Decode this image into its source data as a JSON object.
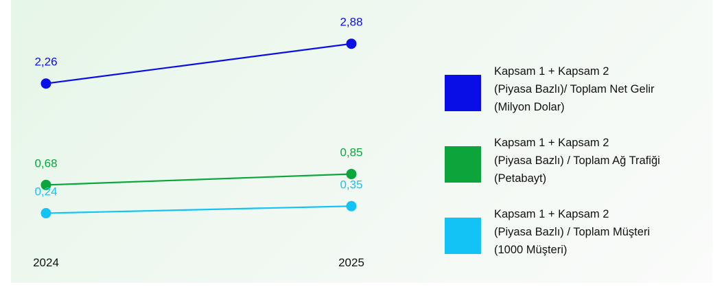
{
  "chart_data": {
    "type": "line",
    "categories": [
      "2024",
      "2025"
    ],
    "series": [
      {
        "name": "Kapsam 1 + Kapsam 2\n(Piyasa Bazlı)/ Toplam Net Gelir\n(Milyon Dolar)",
        "values": [
          2.26,
          2.88
        ],
        "value_labels": [
          "2,26",
          "2,88"
        ],
        "color": "#0a0ee6"
      },
      {
        "name": "Kapsam 1 + Kapsam 2\n(Piyasa Bazlı) / Toplam Ağ Trafiği\n(Petabayt)",
        "values": [
          0.68,
          0.85
        ],
        "value_labels": [
          "0,68",
          "0,85"
        ],
        "color": "#0ba53c"
      },
      {
        "name": "Kapsam 1 + Kapsam 2\n(Piyasa Bazlı) / Toplam Müşteri\n(1000 Müşteri)",
        "values": [
          0.24,
          0.35
        ],
        "value_labels": [
          "0,24",
          "0,35"
        ],
        "color": "#14c3f5"
      }
    ],
    "legend_position": "right",
    "grid": false,
    "y_axis_visible": false
  }
}
